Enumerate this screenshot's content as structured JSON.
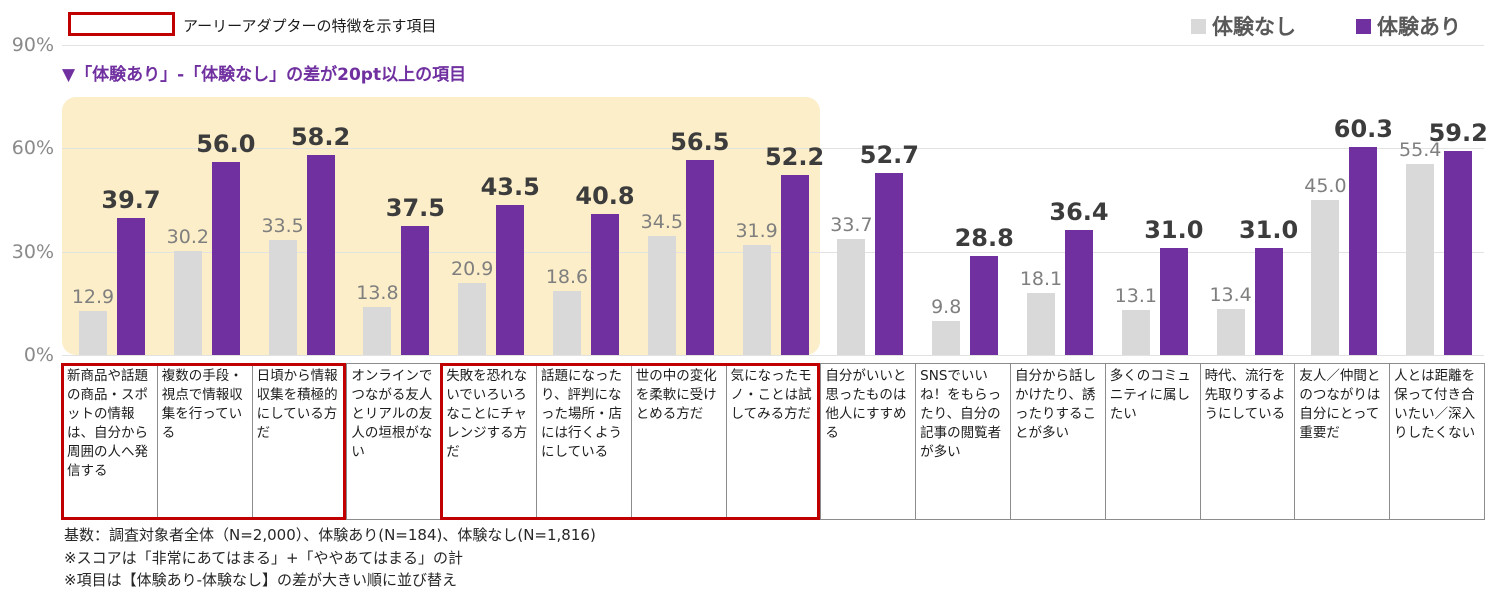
{
  "header": {
    "title": "アーリーアダプターの特徴を示す項目",
    "red_box_meaning": "アーリーアダプターの特徴を示す項目"
  },
  "subtitle": "▼「体験あり」-「体験なし」の差が20pt以上の項目",
  "colors": {
    "bar_nashi": "#D9D9D9",
    "bar_ari": "#7030A0",
    "highlight_band": "#FCEEC8",
    "red_outline": "#C00000",
    "subtitle_text": "#7030A0"
  },
  "chart_data": {
    "type": "bar",
    "categories": [
      "新商品や話題の商品・スポットの情報は、自分から周囲の人へ発信する",
      "複数の手段・視点で情報収集を行っている",
      "日頃から情報収集を積極的にしている方だ",
      "オンラインでつながる友人とリアルの友人の垣根がない",
      "失敗を恐れないでいろいろなことにチャレンジする方だ",
      "話題になったり、評判になった場所・店には行くようにしている",
      "世の中の変化を柔軟に受けとめる方だ",
      "気になったモノ・ことは試してみる方だ",
      "自分がいいと思ったものは他人にすすめる",
      "SNSでいいね！をもらったり、自分の記事の閲覧者が多い",
      "自分から話しかけたり、誘ったりすることが多い",
      "多くのコミュニティに属したい",
      "時代、流行を先取りするようにしている",
      "友人／仲間とのつながりは自分にとって重要だ",
      "人とは距離を保って付き合いたい／深入りしたくない"
    ],
    "series": [
      {
        "name": "体験なし",
        "color": "#D9D9D9",
        "values": [
          12.9,
          30.2,
          33.5,
          13.8,
          20.9,
          18.6,
          34.5,
          31.9,
          33.7,
          9.8,
          18.1,
          13.1,
          13.4,
          45.0,
          55.4
        ]
      },
      {
        "name": "体験あり",
        "color": "#7030A0",
        "values": [
          39.7,
          56.0,
          58.2,
          37.5,
          43.5,
          40.8,
          56.5,
          52.2,
          52.7,
          28.8,
          36.4,
          31.0,
          31.0,
          60.3,
          59.2
        ]
      }
    ],
    "value_label_format": "1-decimal",
    "ylabel": "",
    "xlabel": "",
    "ylim": [
      0,
      90
    ],
    "yticks": [
      {
        "value": 90,
        "label": "90%"
      },
      {
        "value": 60,
        "label": "60%"
      },
      {
        "value": 30,
        "label": "30%"
      },
      {
        "value": 0,
        "label": "0%"
      }
    ],
    "grid": "horizontal",
    "legend_position": "top-right",
    "highlight_band": {
      "start_group": 0,
      "end_group": 7,
      "color": "#FCEEC8",
      "meaning": "「体験あり」-「体験なし」の差が20pt以上の項目"
    },
    "red_outline_groups": [
      {
        "start": 0,
        "end": 2
      },
      {
        "start": 4,
        "end": 7
      }
    ]
  },
  "footnotes": [
    "基数：調査対象者全体（N=2,000）、体験あり(N=184)、体験なし(N=1,816)",
    "※スコアは「非常にあてはまる」+「ややあてはまる」の計",
    "※項目は【体験あり-体験なし】の差が大きい順に並び替え"
  ]
}
